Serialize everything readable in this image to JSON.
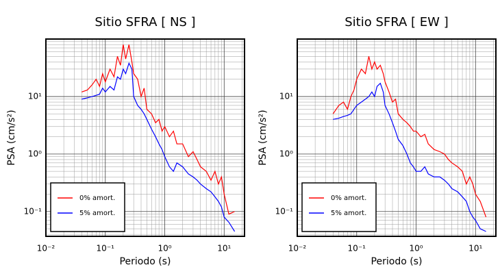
{
  "chart_data": [
    {
      "type": "line",
      "title": "Sitio SFRA [ NS ]",
      "xlabel": "Periodo (s)",
      "ylabel": "PSA (cm/s²)",
      "xscale": "log",
      "yscale": "log",
      "grid": true,
      "legend": "lower left",
      "xlim": [
        0.01,
        22
      ],
      "ylim": [
        0.037,
        100
      ],
      "xticks": [
        {
          "value": 0.01,
          "label": "10⁻²"
        },
        {
          "value": 0.1,
          "label": "10⁻¹"
        },
        {
          "value": 1,
          "label": "10⁰"
        },
        {
          "value": 10,
          "label": "10¹"
        }
      ],
      "yticks": [
        {
          "value": 0.1,
          "label": "10⁻¹"
        },
        {
          "value": 1,
          "label": "10⁰"
        },
        {
          "value": 10,
          "label": "10¹"
        }
      ],
      "x": [
        0.04,
        0.05,
        0.06,
        0.07,
        0.08,
        0.09,
        0.1,
        0.12,
        0.14,
        0.16,
        0.18,
        0.2,
        0.22,
        0.25,
        0.28,
        0.3,
        0.35,
        0.4,
        0.45,
        0.5,
        0.6,
        0.7,
        0.8,
        0.9,
        1.0,
        1.2,
        1.4,
        1.6,
        2,
        2.5,
        3,
        3.5,
        4,
        5,
        6,
        7,
        8,
        9,
        10,
        12,
        15
      ],
      "series": [
        {
          "name": "0% amort.",
          "color": "#ff0000",
          "values": [
            12,
            13,
            16,
            20,
            15,
            25,
            18,
            30,
            22,
            50,
            35,
            80,
            45,
            80,
            40,
            25,
            20,
            10,
            14,
            6,
            5,
            3.5,
            4,
            2.5,
            3,
            2,
            2.5,
            1.5,
            1.5,
            0.9,
            1.1,
            0.8,
            0.6,
            0.5,
            0.35,
            0.5,
            0.3,
            0.4,
            0.2,
            0.09,
            0.1
          ]
        },
        {
          "name": "5% amort.",
          "color": "#0000ff",
          "values": [
            9,
            9.5,
            10,
            10.5,
            11,
            14,
            12,
            15,
            13,
            22,
            20,
            30,
            25,
            38,
            30,
            10,
            7,
            6,
            5,
            4,
            2.7,
            2,
            1.5,
            1.2,
            0.9,
            0.6,
            0.5,
            0.7,
            0.6,
            0.45,
            0.4,
            0.35,
            0.3,
            0.25,
            0.22,
            0.18,
            0.15,
            0.12,
            0.08,
            0.065,
            0.045
          ]
        }
      ]
    },
    {
      "type": "line",
      "title": "Sitio SFRA [ EW ]",
      "xlabel": "Periodo (s)",
      "ylabel": "PSA (cm/s²)",
      "xscale": "log",
      "yscale": "log",
      "grid": true,
      "legend": "lower left",
      "xlim": [
        0.01,
        22
      ],
      "ylim": [
        0.037,
        100
      ],
      "xticks": [
        {
          "value": 0.01,
          "label": "10⁻²"
        },
        {
          "value": 0.1,
          "label": "10⁻¹"
        },
        {
          "value": 1,
          "label": "10⁰"
        },
        {
          "value": 10,
          "label": "10¹"
        }
      ],
      "yticks": [
        {
          "value": 0.1,
          "label": "10⁻¹"
        },
        {
          "value": 1,
          "label": "10⁰"
        },
        {
          "value": 10,
          "label": "10¹"
        }
      ],
      "x": [
        0.04,
        0.05,
        0.06,
        0.07,
        0.08,
        0.09,
        0.1,
        0.12,
        0.14,
        0.16,
        0.18,
        0.2,
        0.22,
        0.25,
        0.28,
        0.3,
        0.35,
        0.4,
        0.45,
        0.5,
        0.6,
        0.7,
        0.8,
        0.9,
        1.0,
        1.2,
        1.4,
        1.6,
        2,
        2.5,
        3,
        3.5,
        4,
        5,
        6,
        7,
        8,
        9,
        10,
        12,
        15
      ],
      "series": [
        {
          "name": "0% amort.",
          "color": "#ff0000",
          "values": [
            5,
            7,
            8,
            6,
            10,
            13,
            20,
            30,
            25,
            50,
            30,
            40,
            30,
            35,
            25,
            18,
            12,
            8,
            9,
            5,
            4,
            3.5,
            3,
            2.5,
            2.5,
            2,
            2.2,
            1.5,
            1.2,
            1.1,
            1,
            0.8,
            0.7,
            0.6,
            0.5,
            0.3,
            0.4,
            0.3,
            0.2,
            0.15,
            0.08
          ]
        },
        {
          "name": "5% amort.",
          "color": "#0000ff",
          "values": [
            4,
            4.2,
            4.5,
            4.7,
            5,
            6,
            7,
            8,
            9,
            10,
            12,
            10,
            15,
            17,
            12,
            7,
            5,
            3.5,
            2.5,
            1.8,
            1.4,
            1.0,
            0.7,
            0.6,
            0.5,
            0.5,
            0.6,
            0.45,
            0.4,
            0.4,
            0.35,
            0.3,
            0.25,
            0.22,
            0.18,
            0.15,
            0.1,
            0.08,
            0.07,
            0.05,
            0.045
          ]
        }
      ]
    }
  ]
}
